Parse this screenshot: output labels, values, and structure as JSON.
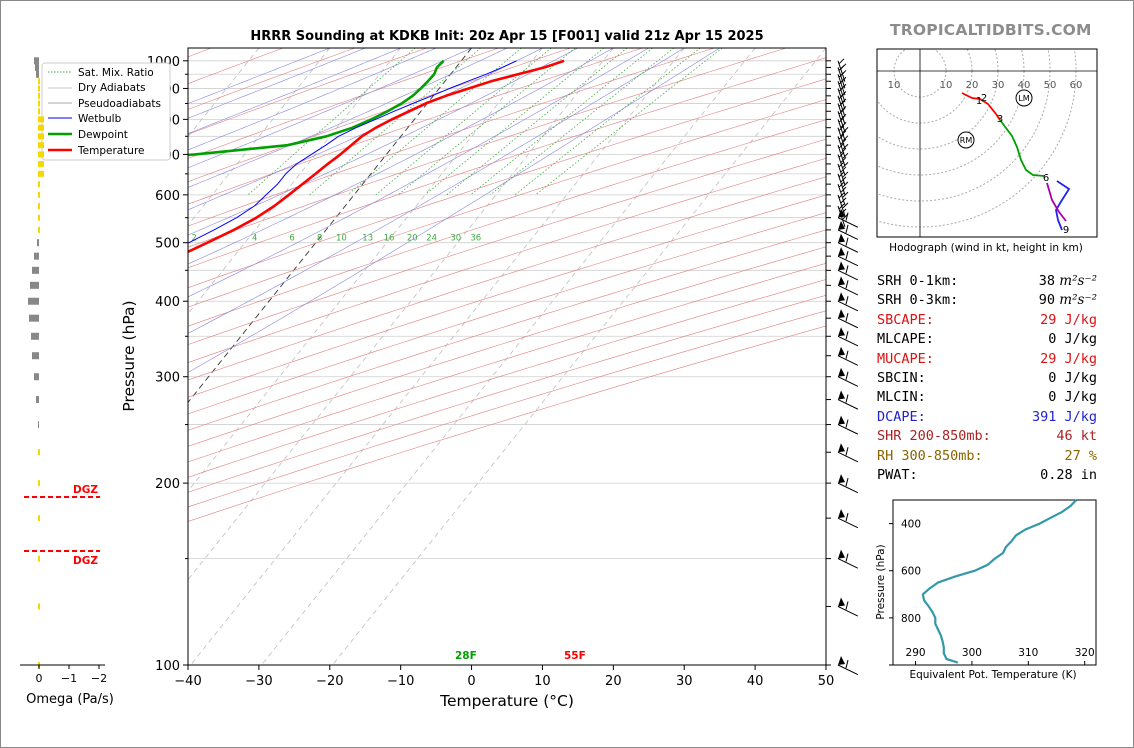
{
  "brand": "TROPICALTIDBITS.COM",
  "chart_data": [
    {
      "type": "line",
      "chart_kind": "skew-t log-p sounding",
      "title": "HRRR Sounding at KDKB Init: 20z Apr 15 [F001] valid 21z Apr 15 2025",
      "xlabel": "Temperature (°C)",
      "ylabel": "Pressure (hPa)",
      "xlim": [
        -40,
        50
      ],
      "ylim": [
        1050,
        100
      ],
      "y_scale": "log",
      "skewed_isotherms": true,
      "grid": true,
      "legend_position": "upper-left",
      "xticks": [
        "−40",
        "−30",
        "−20",
        "−10",
        "0",
        "10",
        "20",
        "30",
        "40",
        "50"
      ],
      "yticks": [
        "100",
        "200",
        "300",
        "400",
        "500",
        "600",
        "700",
        "800",
        "900",
        "1000"
      ],
      "legend": [
        "Sat. Mix. Ratio",
        "Dry Adiabats",
        "Pseudoadiabats",
        "Wetbulb",
        "Dewpoint",
        "Temperature"
      ],
      "mixing_ratio_labels": [
        "2",
        "4",
        "6",
        "8",
        "10",
        "13",
        "16",
        "20",
        "24",
        "30",
        "36"
      ],
      "surface_labels": {
        "dewpoint": "28F",
        "temperature": "55F"
      },
      "colors": {
        "temperature": "#ff0000",
        "dewpoint": "#00a000",
        "wetbulb": "#0000ff",
        "dry_adiabat": "#e07070",
        "pseudoadiabat": "#8888dd",
        "mixing_ratio": "#44aa44"
      },
      "series": [
        {
          "name": "Temperature",
          "points": [
            [
              1000,
              14.5
            ],
            [
              975,
              12.5
            ],
            [
              950,
              9.5
            ],
            [
              925,
              6.5
            ],
            [
              900,
              4.2
            ],
            [
              875,
              1.8
            ],
            [
              850,
              -0.2
            ],
            [
              825,
              -1.7
            ],
            [
              800,
              -3.2
            ],
            [
              775,
              -4.5
            ],
            [
              750,
              -5.5
            ],
            [
              725,
              -6.0
            ],
            [
              700,
              -6.5
            ],
            [
              675,
              -7.2
            ],
            [
              650,
              -7.8
            ],
            [
              625,
              -8.5
            ],
            [
              600,
              -9.2
            ],
            [
              575,
              -10.0
            ],
            [
              550,
              -11.2
            ],
            [
              525,
              -13.0
            ],
            [
              500,
              -15.3
            ],
            [
              475,
              -17.8
            ],
            [
              450,
              -20.3
            ],
            [
              425,
              -22.6
            ],
            [
              400,
              -24.7
            ],
            [
              375,
              -27.3
            ],
            [
              350,
              -30.8
            ],
            [
              325,
              -34.5
            ],
            [
              300,
              -38.5
            ],
            [
              275,
              -42.6
            ],
            [
              260,
              -45.5
            ],
            [
              250,
              -47.5
            ],
            [
              240,
              -48.5
            ],
            [
              225,
              -48.3
            ],
            [
              200,
              -47.7
            ],
            [
              175,
              -47.6
            ],
            [
              150,
              -50.3
            ],
            [
              125,
              -52.8
            ],
            [
              100,
              -55.5
            ]
          ]
        },
        {
          "name": "Dewpoint",
          "points": [
            [
              1000,
              -2.5
            ],
            [
              975,
              -2.7
            ],
            [
              950,
              -2.3
            ],
            [
              925,
              -2.4
            ],
            [
              900,
              -2.6
            ],
            [
              875,
              -2.9
            ],
            [
              850,
              -3.6
            ],
            [
              825,
              -4.7
            ],
            [
              800,
              -6.1
            ],
            [
              775,
              -7.8
            ],
            [
              750,
              -10.5
            ],
            [
              725,
              -15.0
            ],
            [
              700,
              -27.0
            ],
            [
              680,
              -42.0
            ],
            [
              660,
              -58.0
            ],
            [
              650,
              -66.0
            ],
            [
              640,
              -62.0
            ],
            [
              620,
              -56.0
            ],
            [
              600,
              -51.0
            ],
            [
              575,
              -45.5
            ],
            [
              550,
              -41.0
            ],
            [
              525,
              -37.0
            ],
            [
              500,
              -35.0
            ],
            [
              475,
              -36.5
            ],
            [
              450,
              -41.5
            ],
            [
              425,
              -51.0
            ],
            [
              400,
              -64.0
            ],
            [
              380,
              -75.0
            ],
            [
              370,
              -73.0
            ],
            [
              355,
              -66.0
            ],
            [
              340,
              -63.5
            ],
            [
              320,
              -62.5
            ],
            [
              300,
              -62.5
            ],
            [
              280,
              -62.0
            ],
            [
              260,
              -62.0
            ],
            [
              240,
              -63.0
            ],
            [
              225,
              -64.0
            ],
            [
              200,
              -67.0
            ],
            [
              185,
              -70.5
            ],
            [
              170,
              -75.0
            ],
            [
              150,
              -77.0
            ],
            [
              125,
              -80.0
            ],
            [
              100,
              -85.5
            ]
          ]
        },
        {
          "name": "Wetbulb",
          "points": [
            [
              1000,
              7.8
            ],
            [
              975,
              6.5
            ],
            [
              950,
              5.0
            ],
            [
              925,
              3.2
            ],
            [
              900,
              1.5
            ],
            [
              875,
              -0.2
            ],
            [
              850,
              -2.0
            ],
            [
              825,
              -3.8
            ],
            [
              800,
              -5.5
            ],
            [
              775,
              -7.3
            ],
            [
              750,
              -8.8
            ],
            [
              725,
              -9.6
            ],
            [
              700,
              -10.6
            ],
            [
              675,
              -11.6
            ],
            [
              650,
              -12.0
            ],
            [
              625,
              -12.0
            ],
            [
              600,
              -12.4
            ],
            [
              575,
              -12.8
            ],
            [
              550,
              -14.0
            ],
            [
              525,
              -15.8
            ],
            [
              500,
              -17.9
            ],
            [
              475,
              -20.0
            ],
            [
              450,
              -22.5
            ],
            [
              425,
              -24.6
            ],
            [
              400,
              -26.5
            ],
            [
              375,
              -28.6
            ],
            [
              350,
              -31.6
            ],
            [
              325,
              -35.1
            ],
            [
              300,
              -38.8
            ],
            [
              275,
              -42.7
            ],
            [
              260,
              -45.6
            ],
            [
              250,
              -47.6
            ],
            [
              240,
              -48.6
            ],
            [
              225,
              -48.4
            ],
            [
              200,
              -47.8
            ],
            [
              175,
              -47.7
            ],
            [
              150,
              -50.4
            ],
            [
              125,
              -52.9
            ],
            [
              100,
              -55.6
            ]
          ]
        }
      ],
      "wind_barb_levels_hpa": [
        1000,
        975,
        950,
        925,
        900,
        875,
        850,
        825,
        800,
        775,
        750,
        725,
        700,
        675,
        650,
        625,
        600,
        575,
        550,
        525,
        500,
        475,
        450,
        425,
        400,
        375,
        350,
        325,
        300,
        275,
        250,
        225,
        200,
        175,
        150,
        125,
        100
      ]
    },
    {
      "type": "line",
      "chart_kind": "omega profile",
      "xlabel": "Omega (Pa/s)",
      "xticks": [
        "0",
        "−1",
        "−2"
      ],
      "dgz_labels": [
        "DGZ",
        "DGZ"
      ],
      "dgz_levels_hpa": [
        560,
        680
      ]
    },
    {
      "type": "line",
      "chart_kind": "hodograph",
      "caption": "Hodograph (wind in kt, height in km)",
      "ring_labels": [
        "10",
        "10",
        "20",
        "30",
        "40",
        "50",
        "60"
      ],
      "height_labels": [
        "1",
        "2",
        "3",
        "6",
        "9"
      ],
      "markers": [
        "LM",
        "RM"
      ],
      "colors": {
        "0-3km": "#ff0000",
        "3-6km": "#00a000",
        "6-9km": "#0000ff",
        "9-12km": "#aa00aa"
      }
    },
    {
      "type": "line",
      "chart_kind": "equivalent potential temperature profile",
      "xlabel": "Equivalent Pot. Temperature (K)",
      "ylabel": "Pressure (hPa)",
      "xticks": [
        "290",
        "300",
        "310",
        "320"
      ],
      "yticks": [
        "400",
        "600",
        "800"
      ],
      "xlim": [
        286,
        322
      ],
      "ylim": [
        1000,
        300
      ],
      "series": [
        {
          "points": [
            [
              990,
              297.5
            ],
            [
              975,
              295.5
            ],
            [
              950,
              295.0
            ],
            [
              925,
              295.0
            ],
            [
              900,
              294.8
            ],
            [
              875,
              294.5
            ],
            [
              850,
              294.0
            ],
            [
              825,
              293.5
            ],
            [
              800,
              293.5
            ],
            [
              775,
              293.0
            ],
            [
              750,
              292.3
            ],
            [
              725,
              291.5
            ],
            [
              700,
              291.3
            ],
            [
              675,
              292.5
            ],
            [
              650,
              294.0
            ],
            [
              625,
              297.0
            ],
            [
              600,
              300.5
            ],
            [
              575,
              302.8
            ],
            [
              550,
              304.0
            ],
            [
              525,
              305.5
            ],
            [
              500,
              306.0
            ],
            [
              475,
              307.0
            ],
            [
              450,
              307.8
            ],
            [
              425,
              309.5
            ],
            [
              400,
              312.0
            ],
            [
              375,
              314.0
            ],
            [
              350,
              316.0
            ],
            [
              325,
              317.5
            ],
            [
              300,
              318.5
            ]
          ]
        }
      ],
      "line_color": "#3399aa"
    }
  ],
  "stats": [
    {
      "label": "SRH 0-1km:",
      "value": "38",
      "unit": " m²s⁻²",
      "color": "#000000"
    },
    {
      "label": "SRH 0-3km:",
      "value": "90",
      "unit": " m²s⁻²",
      "color": "#000000"
    },
    {
      "label": "SBCAPE:",
      "value": "29 J/kg",
      "unit": "",
      "color": "#dd1111"
    },
    {
      "label": "MLCAPE:",
      "value": "0 J/kg",
      "unit": "",
      "color": "#000000"
    },
    {
      "label": "MUCAPE:",
      "value": "29 J/kg",
      "unit": "",
      "color": "#dd1111"
    },
    {
      "label": "SBCIN:",
      "value": "0 J/kg",
      "unit": "",
      "color": "#000000"
    },
    {
      "label": "MLCIN:",
      "value": "0 J/kg",
      "unit": "",
      "color": "#000000"
    },
    {
      "label": "DCAPE:",
      "value": "391 J/kg",
      "unit": "",
      "color": "#2222cc"
    },
    {
      "label": "SHR 200-850mb:",
      "value": "46 kt",
      "unit": "",
      "color": "#aa2222"
    },
    {
      "label": "RH 300-850mb:",
      "value": "27 %",
      "unit": "",
      "color": "#886600"
    },
    {
      "label": "PWAT:",
      "value": "0.28 in",
      "unit": "",
      "color": "#000000"
    }
  ]
}
